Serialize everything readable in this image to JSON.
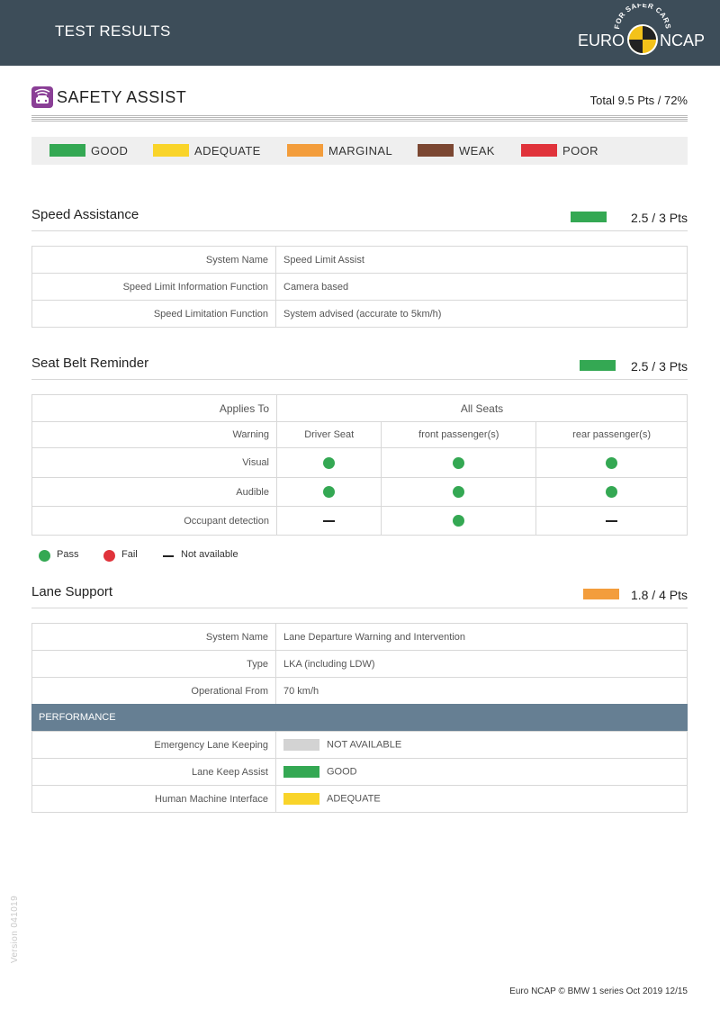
{
  "header": {
    "title": "TEST RESULTS",
    "logo": {
      "text_left": "EURO",
      "text_right": "NCAP",
      "arc_text": "FOR SAFER CARS"
    }
  },
  "section": {
    "icon": "car-safety-assist-icon",
    "title": "SAFETY ASSIST",
    "total": "Total 9.5 Pts / 72%"
  },
  "legend": [
    {
      "label": "GOOD",
      "color": "#34a853"
    },
    {
      "label": "ADEQUATE",
      "color": "#f9d42a"
    },
    {
      "label": "MARGINAL",
      "color": "#f39d3c"
    },
    {
      "label": "WEAK",
      "color": "#7b4732"
    },
    {
      "label": "POOR",
      "color": "#e0333b"
    }
  ],
  "speed": {
    "title": "Speed Assistance",
    "score": "2.5 / 3 Pts",
    "score_color": "#34a853",
    "rows": [
      {
        "k": "System Name",
        "v": "Speed Limit Assist"
      },
      {
        "k": "Speed Limit Information Function",
        "v": "Camera based"
      },
      {
        "k": "Speed Limitation Function",
        "v": "System advised (accurate to 5km/h)"
      }
    ]
  },
  "belt": {
    "title": "Seat Belt Reminder",
    "score": "2.5 / 3 Pts",
    "score_color": "#34a853",
    "applies_label": "Applies To",
    "applies_value": "All Seats",
    "warning_label": "Warning",
    "columns": [
      "Driver Seat",
      "front passenger(s)",
      "rear passenger(s)"
    ],
    "rows": [
      {
        "label": "Visual",
        "cells": [
          "pass",
          "pass",
          "pass"
        ]
      },
      {
        "label": "Audible",
        "cells": [
          "pass",
          "pass",
          "pass"
        ]
      },
      {
        "label": "Occupant detection",
        "cells": [
          "na",
          "pass",
          "na"
        ]
      }
    ],
    "legend": {
      "pass": "Pass",
      "fail": "Fail",
      "na": "Not available",
      "pass_color": "#34a853",
      "fail_color": "#e0333b"
    }
  },
  "lane": {
    "title": "Lane Support",
    "score": "1.8 / 4 Pts",
    "score_color": "#f39d3c",
    "rows": [
      {
        "k": "System Name",
        "v": "Lane Departure Warning and Intervention"
      },
      {
        "k": "Type",
        "v": "LKA (including LDW)"
      },
      {
        "k": "Operational From",
        "v": "70 km/h"
      }
    ],
    "performance_label": "PERFORMANCE",
    "performance": [
      {
        "k": "Emergency Lane Keeping",
        "v": "NOT AVAILABLE",
        "color": "#d3d3d3"
      },
      {
        "k": "Lane Keep Assist",
        "v": "GOOD",
        "color": "#34a853"
      },
      {
        "k": "Human Machine Interface",
        "v": "ADEQUATE",
        "color": "#f9d42a"
      }
    ]
  },
  "version": "Version 041019",
  "footer": "Euro NCAP © BMW 1 series Oct 2019 12/15"
}
